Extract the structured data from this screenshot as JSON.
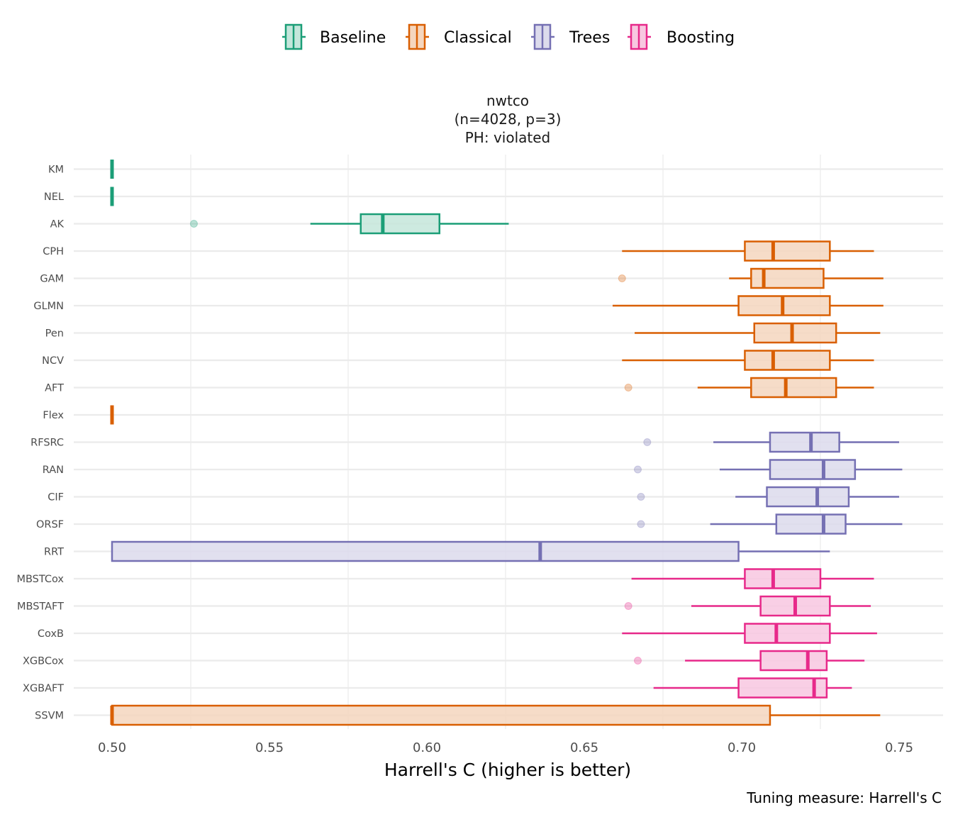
{
  "chart_data": {
    "type": "boxplot",
    "title": [
      "nwtco",
      "(n=4028, p=3)",
      "PH: violated"
    ],
    "xlabel": "Harrell's C (higher is better)",
    "ylabel": "",
    "caption": "Tuning measure: Harrell's C",
    "xlim": [
      0.487,
      0.765
    ],
    "xticks": [
      0.5,
      0.55,
      0.6,
      0.65,
      0.7,
      0.75
    ],
    "xtick_labels": [
      "0.50",
      "0.55",
      "0.60",
      "0.65",
      "0.70",
      "0.75"
    ],
    "grid": true,
    "legend_position": "top",
    "legend": [
      {
        "name": "Baseline",
        "color": "#1b9e77",
        "fill": "#c4e6db"
      },
      {
        "name": "Classical",
        "color": "#d95f02",
        "fill": "#f5d6be"
      },
      {
        "name": "Trees",
        "color": "#7570b3",
        "fill": "#dcdbec"
      },
      {
        "name": "Boosting",
        "color": "#e7298a",
        "fill": "#f8c7e0"
      }
    ],
    "categories": [
      "KM",
      "NEL",
      "AK",
      "CPH",
      "GAM",
      "GLMN",
      "Pen",
      "NCV",
      "AFT",
      "Flex",
      "RFSRC",
      "RAN",
      "CIF",
      "ORSF",
      "RRT",
      "MBSTCox",
      "MBSTAFT",
      "CoxB",
      "XGBCox",
      "XGBAFT",
      "SSVM"
    ],
    "boxes": [
      {
        "label": "KM",
        "group": "Baseline",
        "whisker_low": 0.5,
        "q1": 0.5,
        "median": 0.5,
        "q3": 0.5,
        "whisker_high": 0.5,
        "outliers": []
      },
      {
        "label": "NEL",
        "group": "Baseline",
        "whisker_low": 0.5,
        "q1": 0.5,
        "median": 0.5,
        "q3": 0.5,
        "whisker_high": 0.5,
        "outliers": []
      },
      {
        "label": "AK",
        "group": "Baseline",
        "whisker_low": 0.563,
        "q1": 0.579,
        "median": 0.586,
        "q3": 0.604,
        "whisker_high": 0.626,
        "outliers": [
          0.526
        ]
      },
      {
        "label": "CPH",
        "group": "Classical",
        "whisker_low": 0.662,
        "q1": 0.701,
        "median": 0.71,
        "q3": 0.728,
        "whisker_high": 0.742,
        "outliers": []
      },
      {
        "label": "GAM",
        "group": "Classical",
        "whisker_low": 0.696,
        "q1": 0.703,
        "median": 0.707,
        "q3": 0.726,
        "whisker_high": 0.745,
        "outliers": [
          0.662
        ]
      },
      {
        "label": "GLMN",
        "group": "Classical",
        "whisker_low": 0.659,
        "q1": 0.699,
        "median": 0.713,
        "q3": 0.728,
        "whisker_high": 0.745,
        "outliers": []
      },
      {
        "label": "Pen",
        "group": "Classical",
        "whisker_low": 0.666,
        "q1": 0.704,
        "median": 0.716,
        "q3": 0.73,
        "whisker_high": 0.744,
        "outliers": []
      },
      {
        "label": "NCV",
        "group": "Classical",
        "whisker_low": 0.662,
        "q1": 0.701,
        "median": 0.71,
        "q3": 0.728,
        "whisker_high": 0.742,
        "outliers": []
      },
      {
        "label": "AFT",
        "group": "Classical",
        "whisker_low": 0.686,
        "q1": 0.703,
        "median": 0.714,
        "q3": 0.73,
        "whisker_high": 0.742,
        "outliers": [
          0.664
        ]
      },
      {
        "label": "Flex",
        "group": "Classical",
        "whisker_low": 0.5,
        "q1": 0.5,
        "median": 0.5,
        "q3": 0.5,
        "whisker_high": 0.5,
        "outliers": []
      },
      {
        "label": "RFSRC",
        "group": "Trees",
        "whisker_low": 0.691,
        "q1": 0.709,
        "median": 0.722,
        "q3": 0.731,
        "whisker_high": 0.75,
        "outliers": [
          0.67
        ]
      },
      {
        "label": "RAN",
        "group": "Trees",
        "whisker_low": 0.693,
        "q1": 0.709,
        "median": 0.726,
        "q3": 0.736,
        "whisker_high": 0.751,
        "outliers": [
          0.667
        ]
      },
      {
        "label": "CIF",
        "group": "Trees",
        "whisker_low": 0.698,
        "q1": 0.708,
        "median": 0.724,
        "q3": 0.734,
        "whisker_high": 0.75,
        "outliers": [
          0.668
        ]
      },
      {
        "label": "ORSF",
        "group": "Trees",
        "whisker_low": 0.69,
        "q1": 0.711,
        "median": 0.726,
        "q3": 0.733,
        "whisker_high": 0.751,
        "outliers": [
          0.668
        ]
      },
      {
        "label": "RRT",
        "group": "Trees",
        "whisker_low": 0.5,
        "q1": 0.5,
        "median": 0.636,
        "q3": 0.699,
        "whisker_high": 0.728,
        "outliers": []
      },
      {
        "label": "MBSTCox",
        "group": "Boosting",
        "whisker_low": 0.665,
        "q1": 0.701,
        "median": 0.71,
        "q3": 0.725,
        "whisker_high": 0.742,
        "outliers": []
      },
      {
        "label": "MBSTAFT",
        "group": "Boosting",
        "whisker_low": 0.684,
        "q1": 0.706,
        "median": 0.717,
        "q3": 0.728,
        "whisker_high": 0.741,
        "outliers": [
          0.664
        ]
      },
      {
        "label": "CoxB",
        "group": "Boosting",
        "whisker_low": 0.662,
        "q1": 0.701,
        "median": 0.711,
        "q3": 0.728,
        "whisker_high": 0.743,
        "outliers": []
      },
      {
        "label": "XGBCox",
        "group": "Boosting",
        "whisker_low": 0.682,
        "q1": 0.706,
        "median": 0.721,
        "q3": 0.727,
        "whisker_high": 0.739,
        "outliers": [
          0.667
        ]
      },
      {
        "label": "XGBAFT",
        "group": "Boosting",
        "whisker_low": 0.672,
        "q1": 0.699,
        "median": 0.723,
        "q3": 0.727,
        "whisker_high": 0.735,
        "outliers": []
      },
      {
        "label": "SSVM",
        "group": "Classical",
        "whisker_low": 0.5,
        "q1": 0.5,
        "median": 0.5,
        "q3": 0.709,
        "whisker_high": 0.744,
        "outliers": []
      }
    ]
  }
}
